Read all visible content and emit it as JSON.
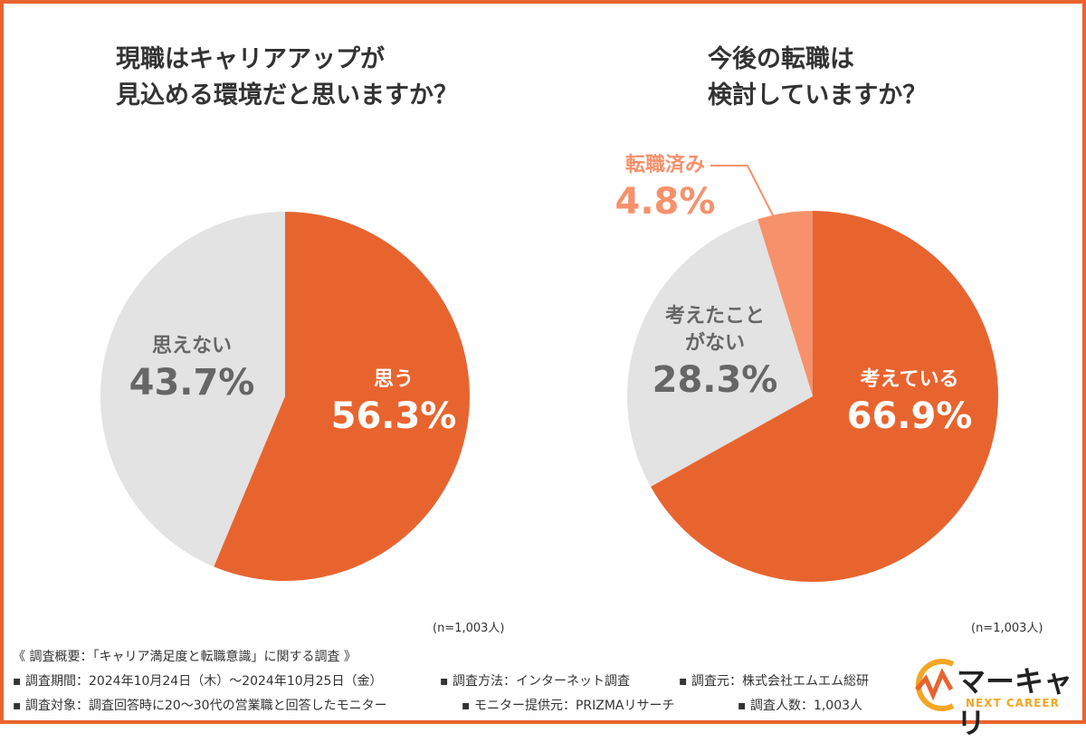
{
  "chart_data": [
    {
      "type": "pie",
      "title": "現職はキャリアアップが見込める環境だと思いますか？",
      "title_lines": [
        "現職はキャリアアップが",
        "見込める環境だと思いますか？"
      ],
      "note": "(n=1,003人)",
      "slices": [
        {
          "label": "思う",
          "value": 56.3,
          "value_label": "56.3%",
          "color": "#E8642F"
        },
        {
          "label": "思えない",
          "value": 43.7,
          "value_label": "43.7%",
          "color": "#E3E3E3"
        }
      ]
    },
    {
      "type": "pie",
      "title": "今後の転職は検討していますか？",
      "title_lines": [
        "今後の転職は",
        "検討していますか？"
      ],
      "note": "(n=1,003人)",
      "slices": [
        {
          "label": "考えている",
          "value": 66.9,
          "value_label": "66.9%",
          "color": "#E8642F"
        },
        {
          "label": "考えたことがない",
          "label_lines": [
            "考えたこと",
            "がない"
          ],
          "value": 28.3,
          "value_label": "28.3%",
          "color": "#E3E3E3"
        },
        {
          "label": "転職済み",
          "value": 4.8,
          "value_label": "4.8%",
          "color": "#F6916B"
        }
      ]
    }
  ],
  "footer": {
    "heading": "《 調査概要：「キャリア満足度と転職意識」に関する調査 》",
    "items": [
      "▪ 調査期間：2024年10月24日（木）～2024年10月25日（金）",
      "▪ 調査方法：インターネット調査",
      "▪ 調査元：株式会社エムエム総研",
      "▪ 調査対象：調査回答時に20～30代の営業職と回答したモニター",
      "▪ モニター提供元：PRIZMAリサーチ",
      "▪ 調査人数：1,003人"
    ]
  },
  "logo": {
    "name": "マーキャリ",
    "sub": "NEXT CAREER"
  }
}
